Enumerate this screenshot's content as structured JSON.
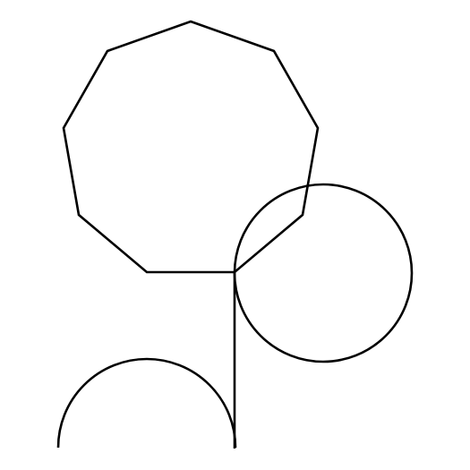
{
  "diagram": {
    "background": "#ffffff",
    "stroke_color": "#000000",
    "shapes": [
      {
        "kind": "polygon",
        "name": "nonagon",
        "sides": 9
      },
      {
        "kind": "circle",
        "name": "circle"
      },
      {
        "kind": "line",
        "name": "vertical-line"
      },
      {
        "kind": "arc",
        "name": "semicircle-arc"
      }
    ]
  }
}
